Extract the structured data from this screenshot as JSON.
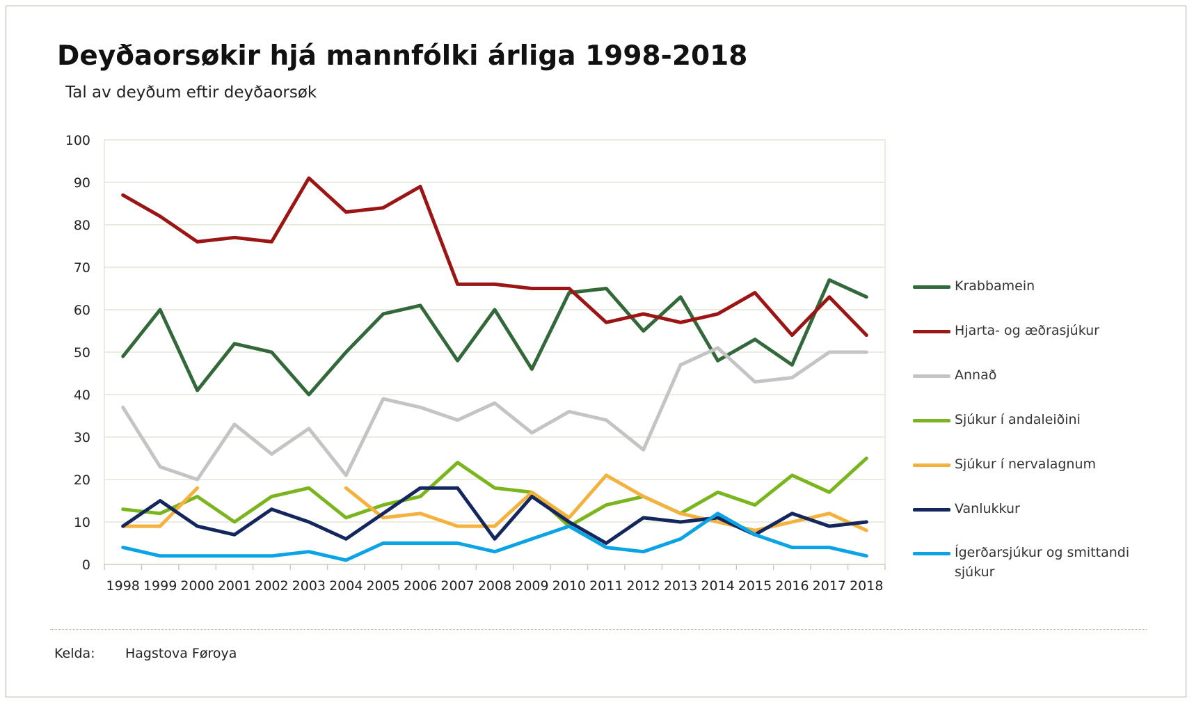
{
  "title": "Deyðaorsøkir hjá mannfólki árliga 1998-2018",
  "subtitle": "Tal av deyðum eftir deyðaorsøk",
  "source": {
    "label": "Kelda:",
    "value": "Hagstova Føroya"
  },
  "chart_data": {
    "type": "line",
    "title": "Deyðaorsøkir hjá mannfólki árliga 1998-2018",
    "subtitle": "Tal av deyðum eftir deyðaorsøk",
    "xlabel": "",
    "ylabel": "",
    "ylim": [
      0,
      100
    ],
    "yticks": [
      0,
      10,
      20,
      30,
      40,
      50,
      60,
      70,
      80,
      90,
      100
    ],
    "grid": true,
    "legend_position": "right",
    "categories": [
      "1998",
      "1999",
      "2000",
      "2001",
      "2002",
      "2003",
      "2004",
      "2005",
      "2006",
      "2007",
      "2008",
      "2009",
      "2010",
      "2011",
      "2012",
      "2013",
      "2014",
      "2015",
      "2016",
      "2017",
      "2018"
    ],
    "series": [
      {
        "name": "Krabbamein",
        "color": "#33693a",
        "values": [
          49,
          60,
          41,
          52,
          50,
          40,
          50,
          59,
          61,
          48,
          60,
          46,
          64,
          65,
          55,
          63,
          48,
          53,
          47,
          67,
          63
        ]
      },
      {
        "name": "Hjarta- og æðrasjúkur",
        "color": "#9b1515",
        "values": [
          87,
          82,
          76,
          77,
          76,
          91,
          83,
          84,
          89,
          66,
          66,
          65,
          65,
          57,
          59,
          57,
          59,
          64,
          54,
          63,
          54
        ]
      },
      {
        "name": "Annað",
        "color": "#c4c4c4",
        "values": [
          37,
          23,
          20,
          33,
          26,
          32,
          21,
          39,
          37,
          34,
          38,
          31,
          36,
          34,
          27,
          47,
          51,
          43,
          44,
          50,
          50
        ]
      },
      {
        "name": "Sjúkur í andaleiðini",
        "color": "#7ab51d",
        "values": [
          13,
          12,
          16,
          10,
          16,
          18,
          11,
          14,
          16,
          24,
          18,
          17,
          9,
          14,
          16,
          12,
          17,
          14,
          21,
          17,
          25
        ]
      },
      {
        "name": "Sjúkur í nervalagnum",
        "color": "#f4b13d",
        "values": [
          9,
          9,
          18,
          null,
          null,
          null,
          18,
          11,
          12,
          9,
          9,
          17,
          11,
          21,
          16,
          12,
          10,
          8,
          10,
          12,
          8
        ]
      },
      {
        "name": "Vanlukkur",
        "color": "#13265e",
        "values": [
          9,
          15,
          9,
          7,
          13,
          10,
          6,
          12,
          18,
          18,
          6,
          16,
          10,
          5,
          11,
          10,
          11,
          7,
          12,
          9,
          10
        ]
      },
      {
        "name": "Ígerðarsjúkur og smittandi sjúkur",
        "color": "#0aa3e3",
        "values": [
          4,
          2,
          2,
          2,
          2,
          3,
          1,
          5,
          5,
          5,
          3,
          6,
          9,
          4,
          3,
          6,
          12,
          7,
          4,
          4,
          2
        ]
      }
    ]
  }
}
